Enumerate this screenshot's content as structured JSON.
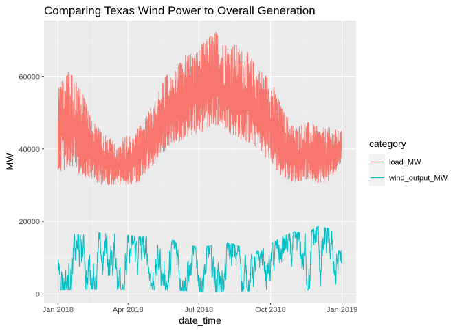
{
  "chart_data": {
    "type": "line",
    "title": "Comparing Texas Wind Power to Overall Generation",
    "xlabel": "date_time",
    "ylabel": "MW",
    "x_ticks": [
      "Jan 2018",
      "Apr 2018",
      "Jul 2018",
      "Oct 2018",
      "Jan 2019"
    ],
    "x_tick_dates": [
      "2018-01-01",
      "2018-04-01",
      "2018-07-01",
      "2018-10-01",
      "2019-01-01"
    ],
    "xlim": [
      "2017-12-14",
      "2019-01-19"
    ],
    "y_ticks": [
      0,
      20000,
      40000,
      60000
    ],
    "ylim": [
      -2400,
      75500
    ],
    "grid": true,
    "legend": {
      "title": "category",
      "position": "right"
    },
    "series": [
      {
        "name": "load_MW",
        "color": "#F8766D",
        "points": [
          [
            "2018-01-01",
            28500,
            63000
          ],
          [
            "2018-01-15",
            29500,
            62000
          ],
          [
            "2018-02-01",
            28000,
            56000
          ],
          [
            "2018-02-15",
            28000,
            48000
          ],
          [
            "2018-03-01",
            27500,
            44000
          ],
          [
            "2018-03-15",
            27500,
            42000
          ],
          [
            "2018-04-01",
            27500,
            44000
          ],
          [
            "2018-04-15",
            28000,
            47000
          ],
          [
            "2018-05-01",
            31000,
            52000
          ],
          [
            "2018-05-15",
            34000,
            60000
          ],
          [
            "2018-06-01",
            38000,
            62000
          ],
          [
            "2018-06-15",
            39000,
            67000
          ],
          [
            "2018-07-01",
            40000,
            68000
          ],
          [
            "2018-07-15",
            41000,
            72000
          ],
          [
            "2018-07-25",
            42000,
            73000
          ],
          [
            "2018-08-01",
            41000,
            70000
          ],
          [
            "2018-08-15",
            39000,
            69500
          ],
          [
            "2018-09-01",
            37000,
            67000
          ],
          [
            "2018-09-15",
            36000,
            63000
          ],
          [
            "2018-10-01",
            32000,
            60000
          ],
          [
            "2018-10-15",
            28500,
            52000
          ],
          [
            "2018-11-01",
            28000,
            46000
          ],
          [
            "2018-11-15",
            28500,
            48000
          ],
          [
            "2018-12-01",
            28000,
            46000
          ],
          [
            "2018-12-15",
            28000,
            46000
          ],
          [
            "2018-12-31",
            35000,
            45000
          ]
        ]
      },
      {
        "name": "wind_output_MW",
        "color": "#00BFC4",
        "points": [
          [
            "2018-01-01",
            700,
            16000
          ],
          [
            "2018-01-15",
            800,
            17000
          ],
          [
            "2018-02-01",
            800,
            16500
          ],
          [
            "2018-02-15",
            900,
            17500
          ],
          [
            "2018-03-01",
            800,
            17000
          ],
          [
            "2018-03-15",
            800,
            17000
          ],
          [
            "2018-04-01",
            900,
            16500
          ],
          [
            "2018-04-15",
            900,
            16000
          ],
          [
            "2018-05-01",
            800,
            16000
          ],
          [
            "2018-05-15",
            800,
            15500
          ],
          [
            "2018-06-01",
            700,
            15000
          ],
          [
            "2018-06-15",
            600,
            14000
          ],
          [
            "2018-07-01",
            400,
            13000
          ],
          [
            "2018-07-15",
            300,
            13500
          ],
          [
            "2018-08-01",
            400,
            14500
          ],
          [
            "2018-08-15",
            500,
            14000
          ],
          [
            "2018-09-01",
            600,
            12500
          ],
          [
            "2018-09-15",
            500,
            12000
          ],
          [
            "2018-10-01",
            700,
            14000
          ],
          [
            "2018-10-15",
            700,
            16000
          ],
          [
            "2018-11-01",
            800,
            17500
          ],
          [
            "2018-11-15",
            800,
            17000
          ],
          [
            "2018-12-01",
            700,
            19000
          ],
          [
            "2018-12-15",
            800,
            18500
          ],
          [
            "2018-12-31",
            1500,
            14500
          ]
        ]
      }
    ]
  }
}
